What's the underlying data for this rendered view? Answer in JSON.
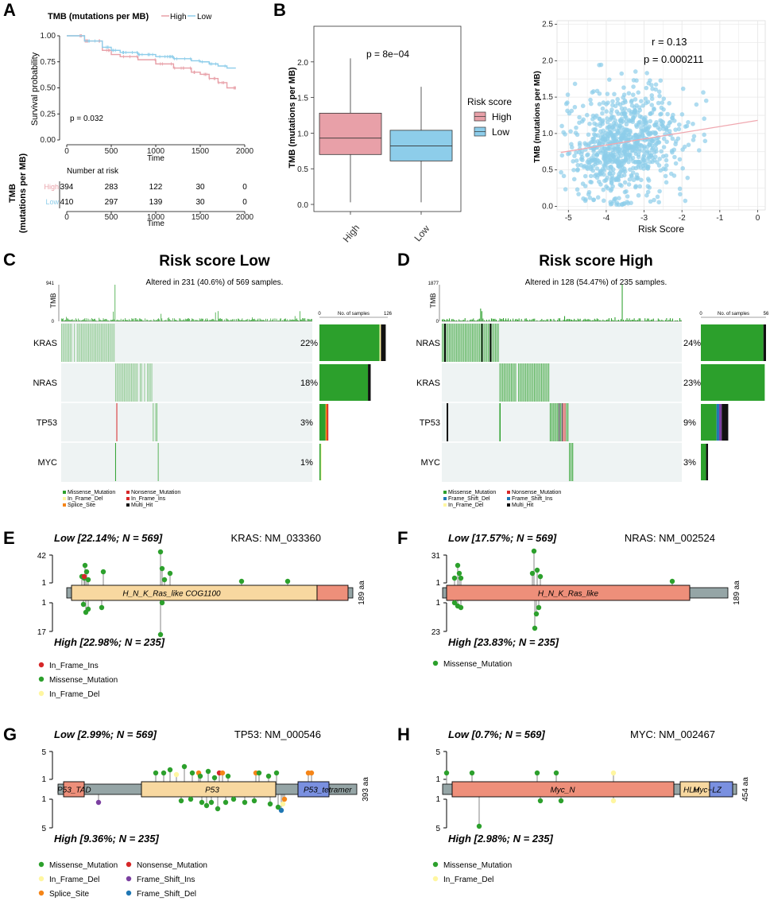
{
  "panels": {
    "A": {
      "letter": "A",
      "title": "TMB (mutations per MB)",
      "legend": [
        "High",
        "Low"
      ],
      "ylabel": "Survival probability",
      "xlabel": "Time",
      "pvalue": "p = 0.032",
      "risk_table_title": "Number at risk",
      "risk_row_title": "TMB",
      "risk_row_title2": "(mutations per MB)",
      "risk_rows": [
        {
          "name": "High",
          "values": [
            "394",
            "283",
            "122",
            "30",
            "0"
          ]
        },
        {
          "name": "Low",
          "values": [
            "410",
            "297",
            "139",
            "30",
            "0"
          ]
        }
      ]
    },
    "B": {
      "letter": "B",
      "pvalue": "p = 8e−04",
      "ylabel": "TMB (mutations per MB)",
      "legend_title": "Risk score",
      "legend": [
        "High",
        "Low"
      ],
      "corr_r": "r = 0.13",
      "corr_p": "p = 0.000211",
      "scatter_ylabel": "TMB (mutations per MB)",
      "scatter_xlabel": "Risk Score"
    },
    "C": {
      "letter": "C",
      "title": "Risk score Low",
      "altered": "Altered in 231 (40.6%) of 569 samples.",
      "tmb_label": "TMB",
      "tmb_max": "941",
      "tmb_min": "0",
      "bar_axis": [
        "0",
        "No. of samples",
        "126"
      ],
      "genes": [
        "KRAS",
        "NRAS",
        "TP53",
        "MYC"
      ],
      "pcts": [
        "22%",
        "18%",
        "3%",
        "1%"
      ],
      "legend": [
        "Missense_Mutation",
        "Nonsense_Mutation",
        "In_Frame_Del",
        "In_Frame_Ins",
        "Splice_Site",
        "Multi_Hit"
      ]
    },
    "D": {
      "letter": "D",
      "title": "Risk score High",
      "altered": "Altered in 128 (54.47%) of 235 samples.",
      "tmb_label": "TMB",
      "tmb_max": "1877",
      "tmb_min": "0",
      "bar_axis": [
        "0",
        "No. of samples",
        "56"
      ],
      "genes": [
        "NRAS",
        "KRAS",
        "TP53",
        "MYC"
      ],
      "pcts": [
        "24%",
        "23%",
        "9%",
        "3%"
      ],
      "legend": [
        "Missense_Mutation",
        "Nonsense_Mutation",
        "Frame_Shift_Del",
        "Frame_Shift_Ins",
        "In_Frame_Del",
        "Multi_Hit"
      ]
    },
    "E": {
      "letter": "E",
      "low": "Low [22.14%; N = 569]",
      "high": "High [22.98%; N = 235]",
      "gene": "KRAS: NM_033360",
      "yt": "42",
      "yb": "17",
      "aa": "189 aa",
      "domain": "H_N_K_Ras_like COG1100",
      "legend": [
        "In_Frame_Ins",
        "Missense_Mutation",
        "In_Frame_Del"
      ]
    },
    "F": {
      "letter": "F",
      "low": "Low [17.57%; N = 569]",
      "high": "High [23.83%; N = 235]",
      "gene": "NRAS: NM_002524",
      "yt": "31",
      "yb": "23",
      "aa": "189 aa",
      "domain": "H_N_K_Ras_like",
      "legend": [
        "Missense_Mutation"
      ]
    },
    "G": {
      "letter": "G",
      "low": "Low [2.99%; N = 569]",
      "high": "High [9.36%; N = 235]",
      "gene": "TP53: NM_000546",
      "yt": "5",
      "yb": "5",
      "aa": "393 aa",
      "domains": [
        "P53_TAD",
        "P53",
        "P53_tetramer"
      ],
      "legend": [
        "Missense_Mutation",
        "Nonsense_Mutation",
        "In_Frame_Del",
        "Frame_Shift_Ins",
        "Splice_Site",
        "Frame_Shift_Del"
      ]
    },
    "H": {
      "letter": "H",
      "low": "Low [0.7%; N = 569]",
      "high": "High [2.98%; N = 235]",
      "gene": "MYC: NM_002467",
      "yt": "5",
      "yb": "5",
      "aa": "454 aa",
      "domains": [
        "Myc_N",
        "HLH",
        "Myc−LZ"
      ],
      "legend": [
        "Missense_Mutation",
        "In_Frame_Del"
      ]
    }
  },
  "colors": {
    "high": "#e8a0a8",
    "low": "#8dcdea",
    "green": "#2ca02c",
    "red": "#d62728",
    "yellow": "#fff6a0",
    "orange": "#f58518",
    "purple": "#7b3fa0",
    "blue": "#1f77b4",
    "black": "#111111",
    "lightbg": "#eef3f3"
  },
  "chart_data": [
    {
      "type": "line",
      "title": "TMB (mutations per MB)",
      "xlabel": "Time",
      "ylabel": "Survival probability",
      "x_ticks": [
        "0",
        "500",
        "1000",
        "1500",
        "2000"
      ],
      "y_ticks": [
        "0.00",
        "0.25",
        "0.50",
        "0.75",
        "1.00"
      ],
      "xlim": [
        0,
        2000
      ],
      "ylim": [
        0,
        1
      ],
      "series": [
        {
          "name": "High",
          "x": [
            0,
            200,
            400,
            500,
            600,
            800,
            1000,
            1200,
            1400,
            1500,
            1600,
            1700,
            1800,
            1900
          ],
          "y": [
            1,
            0.95,
            0.86,
            0.82,
            0.8,
            0.77,
            0.73,
            0.69,
            0.65,
            0.63,
            0.59,
            0.55,
            0.5,
            0.5
          ]
        },
        {
          "name": "Low",
          "x": [
            0,
            200,
            400,
            500,
            600,
            800,
            1000,
            1200,
            1400,
            1500,
            1600,
            1700,
            1800,
            1900
          ],
          "y": [
            1,
            0.95,
            0.89,
            0.86,
            0.84,
            0.82,
            0.8,
            0.78,
            0.76,
            0.75,
            0.73,
            0.71,
            0.69,
            0.69
          ]
        }
      ]
    },
    {
      "type": "box",
      "ylabel": "TMB (mutations per MB)",
      "categories": [
        "High",
        "Low"
      ],
      "y_ticks": [
        "0.0",
        "0.5",
        "1.0",
        "1.5",
        "2.0"
      ],
      "ylim": [
        -0.1,
        2.5
      ],
      "boxes": [
        {
          "name": "High",
          "min": 0.03,
          "q1": 0.7,
          "median": 0.93,
          "q3": 1.28,
          "max": 2.05
        },
        {
          "name": "Low",
          "min": 0.03,
          "q1": 0.61,
          "median": 0.82,
          "q3": 1.04,
          "max": 1.65
        }
      ]
    },
    {
      "type": "scatter",
      "xlabel": "Risk Score",
      "ylabel": "TMB (mutations per MB)",
      "x_ticks": [
        "-5",
        "-4",
        "-3",
        "-2",
        "-1",
        "0"
      ],
      "y_ticks": [
        "0.0",
        "0.5",
        "1.0",
        "1.5",
        "2.0",
        "2.5"
      ],
      "xlim": [
        -5.3,
        0.2
      ],
      "ylim": [
        -0.05,
        2.55
      ],
      "n_points": 804,
      "fit": {
        "x": [
          -5.2,
          0
        ],
        "y": [
          0.74,
          1.18
        ]
      }
    }
  ]
}
